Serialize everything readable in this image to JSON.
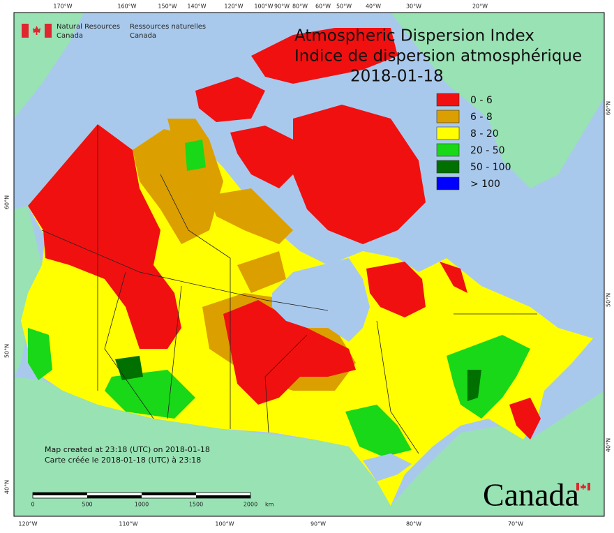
{
  "title": {
    "en": "Atmospheric Dispersion Index",
    "fr": "Indice de dispersion atmosphérique",
    "date": "2018-01-18"
  },
  "agency": {
    "en_line1": "Natural Resources",
    "en_line2": "Canada",
    "fr_line1": "Ressources naturelles",
    "fr_line2": "Canada"
  },
  "legend": [
    {
      "label": "0 - 6",
      "color": "#f01010"
    },
    {
      "label": "6 - 8",
      "color": "#dc9f00"
    },
    {
      "label": "8 - 20",
      "color": "#ffff00"
    },
    {
      "label": "20 - 50",
      "color": "#18d818"
    },
    {
      "label": "50 - 100",
      "color": "#007000"
    },
    {
      "label": "> 100",
      "color": "#0000ff"
    }
  ],
  "graticule": {
    "top": [
      "170°W",
      "160°W",
      "150°W",
      "140°W",
      "120°W",
      "100°W",
      "90°W",
      "80°W",
      "60°W",
      "50°W",
      "40°W",
      "30°W",
      "20°W"
    ],
    "bottom": [
      "120°W",
      "110°W",
      "100°W",
      "90°W",
      "80°W",
      "70°W"
    ],
    "left": [
      "60°N",
      "50°N",
      "40°N"
    ],
    "right": [
      "60°N",
      "50°N",
      "40°N"
    ]
  },
  "credits": {
    "en": "Map created at 23:18 (UTC) on 2018-01-18",
    "fr": "Carte créée le 2018-01-18 (UTC) à 23:18"
  },
  "scale": {
    "ticks": [
      "0",
      "500",
      "1000",
      "1500",
      "2000"
    ],
    "unit": "km"
  },
  "wordmark": "Canada"
}
